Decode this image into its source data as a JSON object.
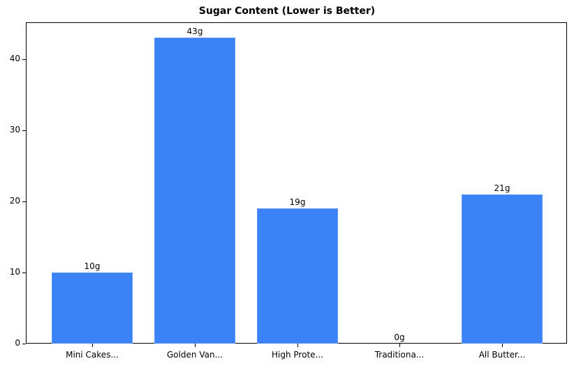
{
  "chart_data": {
    "type": "bar",
    "title": "Sugar Content (Lower is Better)",
    "xlabel": "",
    "ylabel": "",
    "categories": [
      "Mini Cakes...",
      "Golden Van...",
      "High Prote...",
      "Traditiona...",
      "All Butter..."
    ],
    "values": [
      10,
      43,
      19,
      0,
      21
    ],
    "value_labels": [
      "10g",
      "43g",
      "19g",
      "0g",
      "21g"
    ],
    "ylim": [
      0,
      45.15
    ],
    "yticks": [
      0,
      10,
      20,
      30,
      40
    ],
    "grid": false,
    "legend": null,
    "bar_color": "#3b82f6"
  }
}
